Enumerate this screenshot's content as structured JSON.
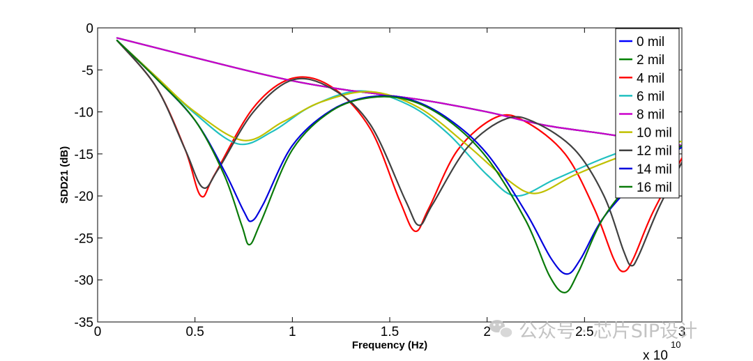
{
  "chart_data": {
    "type": "line",
    "title": "",
    "xlabel": "Frequency (Hz)",
    "ylabel": "SDD21 (dB)",
    "x_exponent_label": "x 10",
    "x_exponent_power": "10",
    "xlim": [
      0,
      3
    ],
    "ylim": [
      -35,
      0
    ],
    "x_ticks": [
      0,
      0.5,
      1,
      1.5,
      2,
      2.5,
      3
    ],
    "x_tick_labels": [
      "0",
      "0.5",
      "1",
      "1.5",
      "2",
      "2.5",
      "3"
    ],
    "y_ticks": [
      0,
      -5,
      -10,
      -15,
      -20,
      -25,
      -30,
      -35
    ],
    "y_tick_labels": [
      "0",
      "-5",
      "-10",
      "-15",
      "-20",
      "-25",
      "-30",
      "-35"
    ],
    "grid": false,
    "legend_position": "top-right",
    "series": [
      {
        "name": "0 mil",
        "color": "#0000ff",
        "x": [
          0.1,
          0.7,
          1.0,
          1.25,
          1.45,
          1.7,
          2.0,
          2.3,
          2.6,
          3.0
        ],
        "y": [
          -1.2,
          -4.7,
          -6.3,
          -7.3,
          -7.9,
          -8.7,
          -10.0,
          -11.6,
          -12.6,
          -14.0
        ]
      },
      {
        "name": "2 mil",
        "color": "#008000",
        "x": [
          0.1,
          0.7,
          1.0,
          1.25,
          1.45,
          1.7,
          2.0,
          2.3,
          2.6,
          3.0
        ],
        "y": [
          -1.2,
          -4.7,
          -6.3,
          -7.3,
          -7.9,
          -8.7,
          -10.0,
          -11.6,
          -12.6,
          -14.0
        ]
      },
      {
        "name": "4 mil",
        "color": "#ff0000",
        "x": [
          0.1,
          0.3,
          0.45,
          0.53,
          0.6,
          0.8,
          1.0,
          1.2,
          1.4,
          1.55,
          1.63,
          1.7,
          1.85,
          2.05,
          2.2,
          2.4,
          2.55,
          2.65,
          2.7,
          2.75,
          2.85,
          3.0
        ],
        "y": [
          -1.5,
          -7.0,
          -14.5,
          -20.0,
          -17.5,
          -9.5,
          -6.0,
          -7.0,
          -12.0,
          -20.5,
          -24.2,
          -21.5,
          -14.5,
          -10.6,
          -11.2,
          -15.0,
          -21.5,
          -27.5,
          -29.0,
          -27.5,
          -22.0,
          -15.5
        ]
      },
      {
        "name": "6 mil",
        "color": "#20c0c0",
        "x": [
          0.1,
          0.3,
          0.5,
          0.72,
          0.9,
          1.1,
          1.35,
          1.6,
          1.8,
          2.0,
          2.15,
          2.35,
          2.6,
          2.8,
          3.0
        ],
        "y": [
          -1.5,
          -5.8,
          -10.2,
          -13.8,
          -12.3,
          -9.3,
          -7.5,
          -9.2,
          -12.6,
          -17.5,
          -20.0,
          -18.0,
          -15.5,
          -14.0,
          -13.5
        ]
      },
      {
        "name": "8 mil",
        "color": "#cc00cc",
        "x": [
          0.1,
          0.7,
          1.0,
          1.25,
          1.45,
          1.7,
          2.0,
          2.3,
          2.6,
          3.0
        ],
        "y": [
          -1.2,
          -4.7,
          -6.3,
          -7.3,
          -7.9,
          -8.7,
          -10.0,
          -11.6,
          -12.6,
          -14.0
        ]
      },
      {
        "name": "10 mil",
        "color": "#c0c000",
        "x": [
          0.1,
          0.3,
          0.5,
          0.75,
          0.95,
          1.15,
          1.4,
          1.65,
          1.9,
          2.1,
          2.25,
          2.45,
          2.7,
          2.85,
          3.0
        ],
        "y": [
          -1.5,
          -5.8,
          -10.0,
          -13.4,
          -11.2,
          -8.8,
          -7.6,
          -9.5,
          -14.0,
          -18.0,
          -19.7,
          -17.5,
          -15.2,
          -14.2,
          -13.5
        ]
      },
      {
        "name": "12 mil",
        "color": "#404040",
        "x": [
          0.1,
          0.3,
          0.45,
          0.54,
          0.62,
          0.8,
          1.0,
          1.2,
          1.4,
          1.58,
          1.65,
          1.72,
          1.9,
          2.1,
          2.25,
          2.45,
          2.6,
          2.7,
          2.74,
          2.78,
          2.88,
          3.0
        ],
        "y": [
          -1.5,
          -7.0,
          -14.5,
          -19.0,
          -16.8,
          -10.0,
          -6.2,
          -7.2,
          -11.5,
          -20.5,
          -23.5,
          -21.0,
          -14.2,
          -10.8,
          -11.3,
          -14.5,
          -20.0,
          -26.5,
          -28.3,
          -27.0,
          -21.5,
          -16.0
        ]
      },
      {
        "name": "14 mil",
        "color": "#0000dd",
        "x": [
          0.1,
          0.3,
          0.5,
          0.65,
          0.75,
          0.79,
          0.85,
          1.0,
          1.2,
          1.4,
          1.6,
          1.8,
          2.0,
          2.2,
          2.33,
          2.41,
          2.48,
          2.6,
          2.8,
          3.0
        ],
        "y": [
          -1.5,
          -6.0,
          -11.0,
          -17.0,
          -21.8,
          -23.0,
          -21.0,
          -14.0,
          -9.8,
          -8.2,
          -8.5,
          -10.8,
          -15.0,
          -22.0,
          -27.5,
          -29.3,
          -27.5,
          -22.5,
          -17.5,
          -14.2
        ]
      },
      {
        "name": "16 mil",
        "color": "#0a7a0a",
        "x": [
          0.1,
          0.3,
          0.5,
          0.65,
          0.74,
          0.78,
          0.84,
          1.0,
          1.2,
          1.4,
          1.6,
          1.8,
          2.0,
          2.2,
          2.32,
          2.4,
          2.47,
          2.6,
          2.8,
          3.0
        ],
        "y": [
          -1.5,
          -6.0,
          -11.0,
          -17.5,
          -23.5,
          -25.8,
          -23.0,
          -14.5,
          -9.9,
          -8.3,
          -8.6,
          -11.0,
          -15.5,
          -23.0,
          -29.5,
          -31.5,
          -29.0,
          -22.5,
          -17.0,
          -14.0
        ]
      }
    ]
  },
  "watermark": {
    "text": "公众号 · 芯片SIP设计",
    "icon": "wechat-icon"
  }
}
